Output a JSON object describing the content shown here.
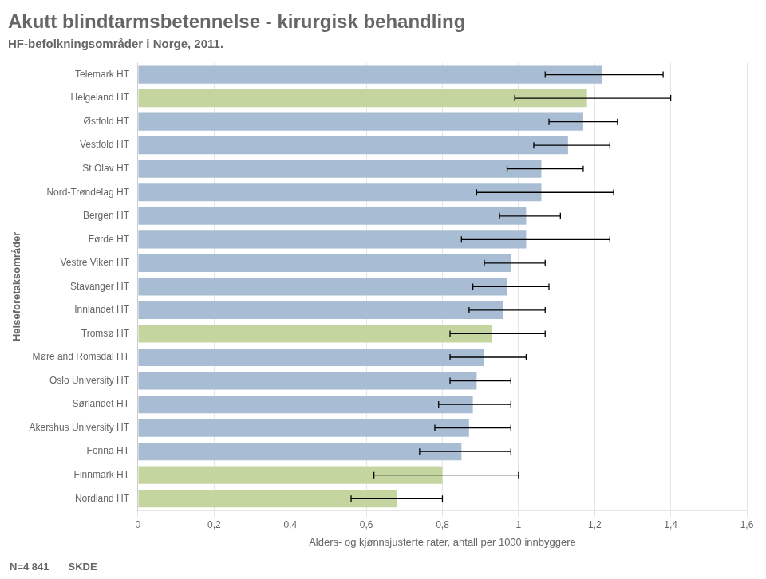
{
  "chart_data": {
    "type": "bar",
    "orientation": "horizontal",
    "title": "Akutt blindtarmsbetennelse - kirurgisk behandling",
    "subtitle": "HF-befolkningsområder i Norge, 2011.",
    "annotations": [
      "N=4 841",
      "SKDE"
    ],
    "ylabel": "Helseforetaksområder",
    "xlabel": "Alders- og kjønnsjusterte rater, antall per 1000 innbyggere",
    "xlim": [
      0,
      1.6
    ],
    "xticks": [
      0,
      {
        "value": 0.2,
        "label": "0,2"
      },
      {
        "value": 0.4,
        "label": "0,4"
      },
      {
        "value": 0.6,
        "label": "0,6"
      },
      {
        "value": 0.8,
        "label": "0,8"
      },
      1,
      {
        "value": 1.2,
        "label": "1,2"
      },
      {
        "value": 1.4,
        "label": "1,4"
      },
      {
        "value": 1.6,
        "label": "1,6"
      }
    ],
    "grid": true,
    "categories": [
      "Nordland HT",
      "Finnmark HT",
      "Fonna HT",
      "Akershus University HT",
      "Sørlandet HT",
      "Oslo University HT",
      "Møre and Romsdal HT",
      "Tromsø HT",
      "Innlandet HT",
      "Stavanger HT",
      "Vestre Viken HT",
      "Førde HT",
      "Bergen HT",
      "Nord-Trøndelag HT",
      "St Olav HT",
      "Vestfold HT",
      "Østfold HT",
      "Helgeland HT",
      "Telemark HT"
    ],
    "values": [
      0.68,
      0.8,
      0.85,
      0.87,
      0.88,
      0.89,
      0.91,
      0.93,
      0.96,
      0.97,
      0.98,
      1.02,
      1.02,
      1.06,
      1.06,
      1.13,
      1.17,
      1.18,
      1.22
    ],
    "error_low": [
      0.12,
      0.18,
      0.11,
      0.09,
      0.09,
      0.07,
      0.09,
      0.11,
      0.09,
      0.09,
      0.07,
      0.17,
      0.07,
      0.17,
      0.09,
      0.09,
      0.09,
      0.19,
      0.15
    ],
    "error_high": [
      0.12,
      0.2,
      0.13,
      0.11,
      0.1,
      0.09,
      0.11,
      0.14,
      0.11,
      0.11,
      0.09,
      0.22,
      0.09,
      0.19,
      0.11,
      0.11,
      0.09,
      0.22,
      0.16
    ],
    "colors": [
      "#c5d5a0",
      "#c5d5a0",
      "#a8bcd4",
      "#a8bcd4",
      "#a8bcd4",
      "#a8bcd4",
      "#a8bcd4",
      "#c5d5a0",
      "#a8bcd4",
      "#a8bcd4",
      "#a8bcd4",
      "#a8bcd4",
      "#a8bcd4",
      "#a8bcd4",
      "#a8bcd4",
      "#a8bcd4",
      "#a8bcd4",
      "#c5d5a0",
      "#a8bcd4"
    ]
  }
}
